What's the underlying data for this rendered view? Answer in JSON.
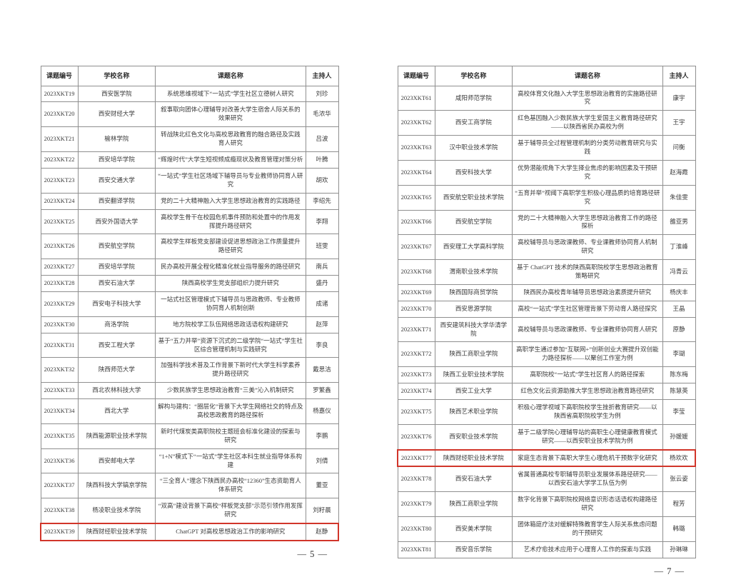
{
  "colors": {
    "page_background": "#ffffff",
    "table_border": "#8f8f8f",
    "text": "#3b3b3b",
    "highlight_box_red": "#d1352a"
  },
  "pages": [
    {
      "side": "left",
      "page_number_label": "— 5 —",
      "columns": [
        "课题编号",
        "学校名称",
        "课题名称",
        "主持人"
      ],
      "rows": [
        {
          "id": "2023XKT19",
          "school": "西安医学院",
          "title": "系统思维视域下“一站式”学生社区立德树人研究",
          "host": "刘珍",
          "highlighted": false
        },
        {
          "id": "2023XKT20",
          "school": "西安财经大学",
          "title": "叙事取向团体心理辅导对改善大学生宿舍人际关系的效果研究",
          "host": "毛浓华",
          "highlighted": false
        },
        {
          "id": "2023XKT21",
          "school": "榆林学院",
          "title": "转战陕北红色文化与高校思政教育的融合路径及实践育人研究",
          "host": "吕波",
          "highlighted": false
        },
        {
          "id": "2023XKT22",
          "school": "西安培华学院",
          "title": "“辉煌时代”大学生短视频成瘾现状及教育管理对策分析",
          "host": "叶腾",
          "highlighted": false
        },
        {
          "id": "2023XKT23",
          "school": "西安交通大学",
          "title": "“一站式”学生社区场域下辅导员与专业教师协同育人研究",
          "host": "胡欢",
          "highlighted": false
        },
        {
          "id": "2023XKT24",
          "school": "西安翻译学院",
          "title": "党的二十大精神融入大学生思想政治教育的实践路径",
          "host": "李绍先",
          "highlighted": false
        },
        {
          "id": "2023XKT25",
          "school": "西安外国语大学",
          "title": "高校学生骨干在校园危机事件预防和处置中的作用发挥提升路径研究",
          "host": "李翔",
          "highlighted": false
        },
        {
          "id": "2023XKT26",
          "school": "西安航空学院",
          "title": "高校学生样板党支部建设促进思想政治工作质量提升路径研究",
          "host": "班雯",
          "highlighted": false
        },
        {
          "id": "2023XKT27",
          "school": "西安培华学院",
          "title": "民办高校开展全程化精准化就业指导服务的路径研究",
          "host": "南兵",
          "highlighted": false
        },
        {
          "id": "2023XKT28",
          "school": "西安石油大学",
          "title": "陕西高校学生党支部组织力提升研究",
          "host": "盛丹",
          "highlighted": false
        },
        {
          "id": "2023XKT29",
          "school": "西安电子科技大学",
          "title": "一站式社区管理模式下辅导员与思政教师、专业教师协同育人机制创新",
          "host": "成诸",
          "highlighted": false
        },
        {
          "id": "2023XKT30",
          "school": "商洛学院",
          "title": "地方院校学工队伍网络思政话语权构建研究",
          "host": "赵萍",
          "highlighted": false
        },
        {
          "id": "2023XKT31",
          "school": "西安工程大学",
          "title": "基于“五力并举”资源下沉式的二级学院“一站式”学生社区综合管理机制与实践研究",
          "host": "李良",
          "highlighted": false
        },
        {
          "id": "2023XKT32",
          "school": "陕西师范大学",
          "title": "加强科学技术普及工作背景下新时代大学生科学素养提升路径研究",
          "host": "戴思洁",
          "highlighted": false
        },
        {
          "id": "2023XKT33",
          "school": "西北农林科技大学",
          "title": "少数民族学生思想政治教育“三美”沁入机制研究",
          "host": "罗繁鑫",
          "highlighted": false
        },
        {
          "id": "2023XKT34",
          "school": "西北大学",
          "title": "解构与建构：“圈层化”背景下大学生网络社交的特点及高校思政教育的路径探析",
          "host": "杨嘉仪",
          "highlighted": false
        },
        {
          "id": "2023XKT35",
          "school": "陕西能源职业技术学院",
          "title": "新时代煤炭类高职院校主题班会标准化建设的探索与研究",
          "host": "李鹏",
          "highlighted": false
        },
        {
          "id": "2023XKT36",
          "school": "西安邮电大学",
          "title": "“1+N”模式下“一站式”学生社区本科生就业指导体系构建",
          "host": "刘倩",
          "highlighted": false
        },
        {
          "id": "2023XKT37",
          "school": "陕西科技大学镐京学院",
          "title": "“三全育人”理念下陕西民办高校“12360”生态资助育人体系研究",
          "host": "董亚",
          "highlighted": false
        },
        {
          "id": "2023XKT38",
          "school": "杨凌职业技术学院",
          "title": "“双高”建设背景下高校“样板党支部”示范引领作用发挥研究",
          "host": "刘籽晨",
          "highlighted": false
        },
        {
          "id": "2023XKT39",
          "school": "陕西财经职业技术学院",
          "title": "ChatGPT 对高校思想政治工作的影响研究",
          "host": "赵静",
          "highlighted": true
        }
      ]
    },
    {
      "side": "right",
      "page_number_label": "— 7 —",
      "columns": [
        "课题编号",
        "学校名称",
        "课题名称",
        "主持人"
      ],
      "rows": [
        {
          "id": "2023XKT61",
          "school": "咸阳师范学院",
          "title": "高校体育文化融入大学生思想政治教育的实施路径研究",
          "host": "康宇",
          "highlighted": false
        },
        {
          "id": "2023XKT62",
          "school": "西安工商学院",
          "title": "红色基因融入少数民族大学生爱国主义教育路径研究——以陕西省民办高校为例",
          "host": "王宇",
          "highlighted": false
        },
        {
          "id": "2023XKT63",
          "school": "汉中职业技术学院",
          "title": "基于辅导员全过程管理机制的分类劳动教育研究与实践",
          "host": "问衡",
          "highlighted": false
        },
        {
          "id": "2023XKT64",
          "school": "西安科技大学",
          "title": "优势潜能视角下大学生择业焦虑的影响因素及干预研究",
          "host": "赵海霞",
          "highlighted": false
        },
        {
          "id": "2023XKT65",
          "school": "西安航空职业技术学院",
          "title": "“五育并举”视阈下高职学生积极心理品质的培育路径研究",
          "host": "朱佳雯",
          "highlighted": false
        },
        {
          "id": "2023XKT66",
          "school": "西安航空学院",
          "title": "党的二十大精神融入大学生思想政治教育工作的路径探析",
          "host": "雒亚男",
          "highlighted": false
        },
        {
          "id": "2023XKT67",
          "school": "西安理工大学高科学院",
          "title": "高校辅导员与思政课教师、专业课教师协同育人机制研究",
          "host": "丁淮峰",
          "highlighted": false
        },
        {
          "id": "2023XKT68",
          "school": "渭南职业技术学院",
          "title": "基于 ChatGPT 技术的陕西高职院校学生思想政治教育策略研究",
          "host": "冯青云",
          "highlighted": false
        },
        {
          "id": "2023XKT69",
          "school": "陕西国际商贸学院",
          "title": "陕西民办高校青年辅导员思想政治素质提升研究",
          "host": "杨庆丰",
          "highlighted": false
        },
        {
          "id": "2023XKT70",
          "school": "西安思源学院",
          "title": "高校“一站式”学生社区管理背景下劳动育人路径探究",
          "host": "王晶",
          "highlighted": false
        },
        {
          "id": "2023XKT71",
          "school": "西安建筑科技大学华清学院",
          "title": "高校辅导员与思政课教师、专业课教师协同育人研究",
          "host": "原静",
          "highlighted": false
        },
        {
          "id": "2023XKT72",
          "school": "陕西工商职业学院",
          "title": "高职学生通过参加“互联网+”创新创业大赛提升双创能力路径探析——以聚创工作室为例",
          "host": "李瑚",
          "highlighted": false
        },
        {
          "id": "2023XKT73",
          "school": "陕西工业职业技术学院",
          "title": "高职院校“一站式”学生社区育人的路径探索",
          "host": "陈东梅",
          "highlighted": false
        },
        {
          "id": "2023XKT74",
          "school": "西安工业大学",
          "title": "红色文化云资源助推大学生思想政治教育路径研究",
          "host": "陈慧英",
          "highlighted": false
        },
        {
          "id": "2023XKT75",
          "school": "陕西艺术职业学院",
          "title": "积极心理学视域下高职院校学生挫折教育研究——以陕西省高职院校学生为例",
          "host": "李莹",
          "highlighted": false
        },
        {
          "id": "2023XKT76",
          "school": "西安职业技术学院",
          "title": "基于二级学院心理辅导站的高职生心理健康教育模式研究——以西安职业技术学院为例",
          "host": "孙媛媛",
          "highlighted": false
        },
        {
          "id": "2023XKT77",
          "school": "陕西财经职业技术学院",
          "title": "家庭生态背景下高职大学生心理危机干预数字化研究",
          "host": "杨欢欢",
          "highlighted": true
        },
        {
          "id": "2023XKT78",
          "school": "西安石油大学",
          "title": "省属普通高校专职辅导员职业发展体系路径研究——以西安石油大学学工队伍为例",
          "host": "张云姿",
          "highlighted": false
        },
        {
          "id": "2023XKT79",
          "school": "陕西工商职业学院",
          "title": "数字化背景下高职院校网络意识形态话语权构建路径研究",
          "host": "程芳",
          "highlighted": false
        },
        {
          "id": "2023XKT80",
          "school": "西安美术学院",
          "title": "团体箱庭疗法对缓解特殊教育学生人际关系焦虑问题的干预研究",
          "host": "韩璐",
          "highlighted": false
        },
        {
          "id": "2023XKT81",
          "school": "西安音乐学院",
          "title": "艺术疗愈技术应用于心理育人工作的探索与实践",
          "host": "孙琳琳",
          "highlighted": false
        }
      ]
    }
  ]
}
